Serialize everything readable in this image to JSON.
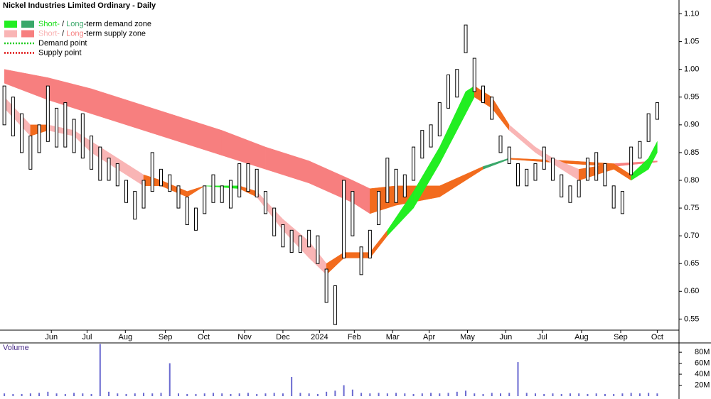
{
  "chart_data": {
    "type": "candlestick",
    "title": "Nickel Industries Limited Ordinary - Daily",
    "legend": [
      {
        "parts": [
          "Short-",
          " / ",
          "Long",
          "-term demand zone"
        ],
        "part_colors": [
          "#11dd11",
          "#000000",
          "#3aa86a",
          "#000000"
        ],
        "swatches": [
          "#22ee22",
          "#3aa86a"
        ]
      },
      {
        "parts": [
          "Short-",
          " / ",
          "Long",
          "-term supply zone"
        ],
        "part_colors": [
          "#f9b0b0",
          "#000000",
          "#f77f7f",
          "#000000"
        ],
        "swatches": [
          "#f9b5b5",
          "#f77f7f"
        ]
      },
      {
        "parts": [
          "Demand point"
        ],
        "part_colors": [
          "#000000"
        ],
        "dotted": "#22cc22"
      },
      {
        "parts": [
          "Supply point"
        ],
        "part_colors": [
          "#000000"
        ],
        "dotted": "#dd1111"
      }
    ],
    "x": [
      0,
      1,
      2,
      3,
      4,
      5,
      6,
      7,
      8,
      9,
      10,
      11,
      12,
      13,
      14,
      15,
      16,
      17,
      18,
      19,
      20,
      21,
      22,
      23,
      24,
      25,
      26,
      27,
      28,
      29,
      30,
      31,
      32,
      33,
      34,
      35,
      36,
      37,
      38,
      39,
      40,
      41,
      42,
      43,
      44,
      45,
      46,
      47,
      48,
      49,
      50,
      51,
      52,
      53,
      54,
      55,
      56,
      57,
      58,
      59,
      60,
      61,
      62,
      63,
      64,
      65,
      66,
      67,
      68,
      69,
      70,
      71,
      72,
      73,
      74,
      75
    ],
    "high": [
      0.97,
      0.95,
      0.92,
      0.88,
      0.9,
      0.97,
      0.93,
      0.94,
      0.91,
      0.92,
      0.88,
      0.86,
      0.84,
      0.83,
      0.8,
      0.78,
      0.8,
      0.85,
      0.82,
      0.81,
      0.79,
      0.77,
      0.75,
      0.79,
      0.81,
      0.79,
      0.8,
      0.83,
      0.83,
      0.82,
      0.78,
      0.75,
      0.72,
      0.71,
      0.7,
      0.71,
      0.7,
      0.64,
      0.61,
      0.8,
      0.78,
      0.68,
      0.71,
      0.78,
      0.84,
      0.82,
      0.81,
      0.86,
      0.89,
      0.9,
      0.94,
      0.99,
      1.0,
      1.08,
      1.02,
      0.97,
      0.95,
      0.88,
      0.86,
      0.83,
      0.82,
      0.83,
      0.86,
      0.84,
      0.81,
      0.79,
      0.8,
      0.84,
      0.85,
      0.83,
      0.79,
      0.78,
      0.86,
      0.87,
      0.92,
      0.94
    ],
    "low": [
      0.9,
      0.88,
      0.85,
      0.82,
      0.85,
      0.87,
      0.86,
      0.86,
      0.85,
      0.84,
      0.82,
      0.8,
      0.8,
      0.79,
      0.76,
      0.73,
      0.75,
      0.78,
      0.79,
      0.78,
      0.75,
      0.72,
      0.71,
      0.74,
      0.76,
      0.76,
      0.75,
      0.77,
      0.78,
      0.77,
      0.74,
      0.7,
      0.68,
      0.67,
      0.67,
      0.68,
      0.65,
      0.58,
      0.54,
      0.66,
      0.7,
      0.63,
      0.66,
      0.72,
      0.76,
      0.76,
      0.77,
      0.8,
      0.84,
      0.86,
      0.88,
      0.93,
      0.95,
      1.03,
      0.96,
      0.94,
      0.91,
      0.85,
      0.83,
      0.79,
      0.79,
      0.8,
      0.82,
      0.8,
      0.77,
      0.76,
      0.77,
      0.8,
      0.8,
      0.79,
      0.75,
      0.74,
      0.81,
      0.84,
      0.87,
      0.91
    ],
    "candle_color": "#000000",
    "zones": [
      {
        "x": [
          0,
          5,
          10,
          15,
          20,
          25,
          30,
          35,
          40,
          42,
          45,
          50,
          55,
          58,
          65,
          70,
          75
        ],
        "upper": [
          1.0,
          0.985,
          0.965,
          0.94,
          0.915,
          0.89,
          0.86,
          0.835,
          0.8,
          0.785,
          0.79,
          0.79,
          0.825,
          0.84,
          0.835,
          0.83,
          0.835
        ],
        "lower": [
          0.975,
          0.945,
          0.92,
          0.895,
          0.87,
          0.845,
          0.82,
          0.795,
          0.76,
          0.74,
          0.755,
          0.77,
          0.82,
          0.838,
          0.83,
          0.825,
          0.833
        ],
        "colors": [
          "#f77f7f",
          "#f77f7f",
          "#f77f7f",
          "#f77f7f",
          "#f77f7f",
          "#f77f7f",
          "#f77f7f",
          "#f77f7f",
          "#f77f7f",
          "#f26b1d",
          "#f26b1d",
          "#f26b1d",
          "#3aa86a",
          "#f26b1d",
          "#f26b1d",
          "#f77f7f"
        ]
      },
      {
        "x": [
          0,
          3,
          5,
          8,
          10,
          13,
          16,
          18,
          21,
          23,
          27,
          29,
          32,
          35,
          37,
          39,
          42,
          44,
          47,
          50,
          53,
          54,
          56,
          58,
          61,
          63,
          66,
          70,
          72,
          74,
          75
        ],
        "upper": [
          0.95,
          0.9,
          0.9,
          0.89,
          0.87,
          0.84,
          0.81,
          0.8,
          0.78,
          0.79,
          0.79,
          0.78,
          0.73,
          0.69,
          0.65,
          0.67,
          0.67,
          0.71,
          0.78,
          0.86,
          0.96,
          0.97,
          0.95,
          0.9,
          0.86,
          0.84,
          0.82,
          0.83,
          0.81,
          0.84,
          0.87
        ],
        "lower": [
          0.93,
          0.88,
          0.89,
          0.88,
          0.85,
          0.82,
          0.79,
          0.79,
          0.77,
          0.79,
          0.785,
          0.77,
          0.71,
          0.66,
          0.63,
          0.66,
          0.66,
          0.7,
          0.75,
          0.83,
          0.92,
          0.95,
          0.93,
          0.89,
          0.85,
          0.83,
          0.8,
          0.82,
          0.8,
          0.82,
          0.85
        ],
        "colors": [
          "#f9b5b5",
          "#f26b1d",
          "#f9b5b5",
          "#f9b5b5",
          "#f9b5b5",
          "#f9b5b5",
          "#f26b1d",
          "#f26b1d",
          "#f26b1d",
          "#22ee22",
          "#f26b1d",
          "#f9b5b5",
          "#f9b5b5",
          "#f9b5b5",
          "#f26b1d",
          "#f26b1d",
          "#f26b1d",
          "#22ee22",
          "#22ee22",
          "#22ee22",
          "#22ee22",
          "#f26b1d",
          "#f26b1d",
          "#f9b5b5",
          "#f9b5b5",
          "#f9b5b5",
          "#f26b1d",
          "#f26b1d",
          "#22ee22",
          "#22ee22"
        ]
      }
    ],
    "xlim": [
      -0.5,
      77.5
    ],
    "xticks": [
      {
        "value": 5.4,
        "label": "Jun"
      },
      {
        "value": 9.5,
        "label": "Jul"
      },
      {
        "value": 13.9,
        "label": "Aug"
      },
      {
        "value": 18.5,
        "label": "Sep"
      },
      {
        "value": 22.9,
        "label": "Oct"
      },
      {
        "value": 27.6,
        "label": "Nov"
      },
      {
        "value": 32.0,
        "label": "Dec"
      },
      {
        "value": 36.2,
        "label": "2024"
      },
      {
        "value": 40.2,
        "label": "Feb"
      },
      {
        "value": 44.6,
        "label": "Mar"
      },
      {
        "value": 48.8,
        "label": "Apr"
      },
      {
        "value": 53.2,
        "label": "May"
      },
      {
        "value": 57.6,
        "label": "Jun"
      },
      {
        "value": 61.8,
        "label": "Jul"
      },
      {
        "value": 66.3,
        "label": "Aug"
      },
      {
        "value": 70.8,
        "label": "Sep"
      },
      {
        "value": 75.0,
        "label": "Oct"
      }
    ],
    "ylim": [
      0.53,
      1.125
    ],
    "yticks": [
      {
        "value": 1.1,
        "label": "1.10"
      },
      1.05,
      {
        "value": 1.0,
        "label": "1.00"
      },
      0.95,
      {
        "value": 0.9,
        "label": "0.90"
      },
      0.85,
      {
        "value": 0.8,
        "label": "0.80"
      },
      0.75,
      {
        "value": 0.7,
        "label": "0.70"
      },
      0.65,
      {
        "value": 0.6,
        "label": "0.60"
      },
      0.55
    ],
    "volume": {
      "label": "Volume",
      "color": "#6a6ad0",
      "values": [
        5,
        4,
        4,
        5,
        6,
        8,
        5,
        4,
        6,
        5,
        4,
        95,
        8,
        5,
        4,
        5,
        6,
        5,
        6,
        60,
        5,
        4,
        4,
        5,
        6,
        5,
        4,
        5,
        6,
        4,
        5,
        6,
        5,
        35,
        6,
        5,
        4,
        8,
        10,
        20,
        12,
        6,
        5,
        6,
        5,
        6,
        5,
        4,
        5,
        6,
        5,
        6,
        8,
        10,
        5,
        4,
        6,
        5,
        6,
        62,
        6,
        5,
        4,
        5,
        4,
        5,
        5,
        4,
        5,
        4,
        4,
        5,
        6,
        5,
        6,
        5
      ],
      "ylim": [
        0,
        97
      ],
      "yticks": [
        {
          "value": 80,
          "label": "80M"
        },
        {
          "value": 60,
          "label": "60M"
        },
        {
          "value": 40,
          "label": "40M"
        },
        {
          "value": 20,
          "label": "20M"
        }
      ]
    }
  }
}
